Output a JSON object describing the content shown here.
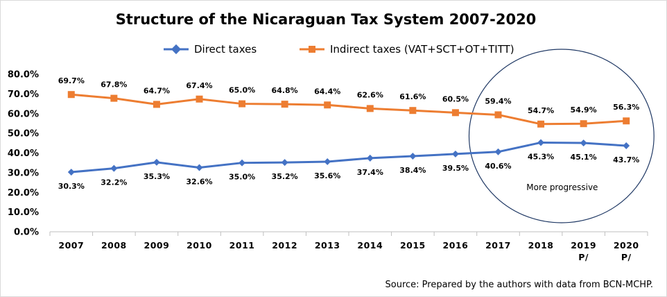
{
  "chart_data": {
    "type": "line",
    "title": "Structure of the Nicaraguan Tax System 2007-2020",
    "categories": [
      "2007",
      "2008",
      "2009",
      "2010",
      "2011",
      "2012",
      "2013",
      "2014",
      "2015",
      "2016",
      "2017",
      "2018",
      "2019",
      "2020"
    ],
    "category_notes": [
      "",
      "",
      "",
      "",
      "",
      "",
      "",
      "",
      "",
      "",
      "",
      "",
      "P/",
      "P/"
    ],
    "series": [
      {
        "name": "Direct taxes",
        "color": "#4472C4",
        "marker": "diamond",
        "values": [
          30.3,
          32.2,
          35.3,
          32.6,
          35.0,
          35.2,
          35.6,
          37.4,
          38.4,
          39.5,
          40.6,
          45.3,
          45.1,
          43.7
        ],
        "labels": [
          "30.3%",
          "32.2%",
          "35.3%",
          "32.6%",
          "35.0%",
          "35.2%",
          "35.6%",
          "37.4%",
          "38.4%",
          "39.5%",
          "40.6%",
          "45.3%",
          "45.1%",
          "43.7%"
        ]
      },
      {
        "name": "Indirect taxes (VAT+SCT+OT+TITT)",
        "color": "#ED7D31",
        "marker": "square",
        "values": [
          69.7,
          67.8,
          64.7,
          67.4,
          65.0,
          64.8,
          64.4,
          62.6,
          61.6,
          60.5,
          59.4,
          54.7,
          54.9,
          56.3
        ],
        "labels": [
          "69.7%",
          "67.8%",
          "64.7%",
          "67.4%",
          "65.0%",
          "64.8%",
          "64.4%",
          "62.6%",
          "61.6%",
          "60.5%",
          "59.4%",
          "54.7%",
          "54.9%",
          "56.3%"
        ]
      }
    ],
    "ylim": [
      0,
      80
    ],
    "yticks": [
      0,
      10,
      20,
      30,
      40,
      50,
      60,
      70,
      80
    ],
    "ytick_labels": [
      "0.0%",
      "10.0%",
      "20.0%",
      "30.0%",
      "40.0%",
      "50.0%",
      "60.0%",
      "70.0%",
      "80.0%"
    ],
    "grid": false,
    "legend_position": "top",
    "annotation": {
      "text": "More progressive",
      "covers_categories": [
        "2017",
        "2018",
        "2019",
        "2020"
      ],
      "color": "#1F3864"
    },
    "source": "Source: Prepared by the authors with data from BCN-MCHP.",
    "xlabel": "",
    "ylabel": ""
  }
}
